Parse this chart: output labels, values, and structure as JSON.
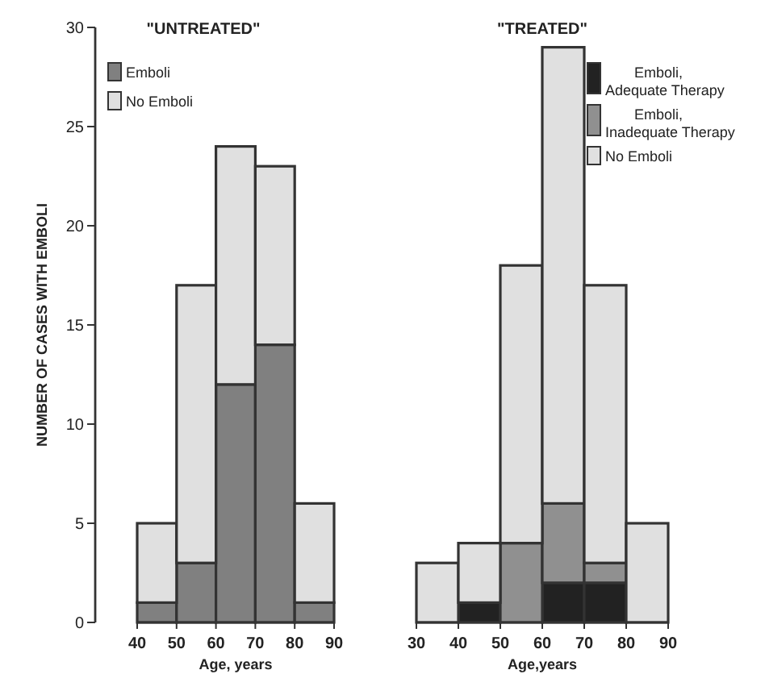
{
  "chart_data": [
    {
      "type": "bar",
      "title": "\"UNTREATED\"",
      "xlabel": "Age, years",
      "ylabel": "NUMBER OF CASES WITH EMBOLI",
      "x": [
        45,
        55,
        65,
        75,
        85
      ],
      "stacked": true,
      "xlim": [
        40,
        90
      ],
      "xticks": [
        40,
        50,
        60,
        70,
        80,
        90
      ],
      "ylim": [
        0,
        30
      ],
      "yticks": [
        0,
        5,
        10,
        15,
        20,
        25,
        30
      ],
      "legend": "top left",
      "grid": false,
      "series": [
        {
          "name": "Emboli",
          "color": "#808080",
          "values": [
            1,
            3,
            12,
            14,
            1
          ]
        },
        {
          "name": "No Emboli",
          "color": "#e0e0e0",
          "values": [
            4,
            14,
            12,
            9,
            5
          ]
        }
      ]
    },
    {
      "type": "bar",
      "title": "\"TREATED\"",
      "xlabel": "Age,years",
      "x": [
        35,
        45,
        55,
        65,
        75,
        85
      ],
      "stacked": true,
      "xlim": [
        30,
        90
      ],
      "xticks": [
        30,
        40,
        50,
        60,
        70,
        80,
        90
      ],
      "ylim": [
        0,
        30
      ],
      "tick_labels": "x",
      "legend": "top right",
      "grid": false,
      "series": [
        {
          "name": "Emboli, Adequate Therapy",
          "color": "#222222",
          "values": [
            0,
            1,
            0,
            2,
            2,
            0
          ]
        },
        {
          "name": "Emboli, Inadequate Therapy",
          "color": "#909090",
          "values": [
            0,
            0,
            4,
            4,
            1,
            0
          ]
        },
        {
          "name": "No Emboli",
          "color": "#e0e0e0",
          "values": [
            3,
            3,
            14,
            23,
            14,
            5
          ]
        }
      ]
    }
  ]
}
